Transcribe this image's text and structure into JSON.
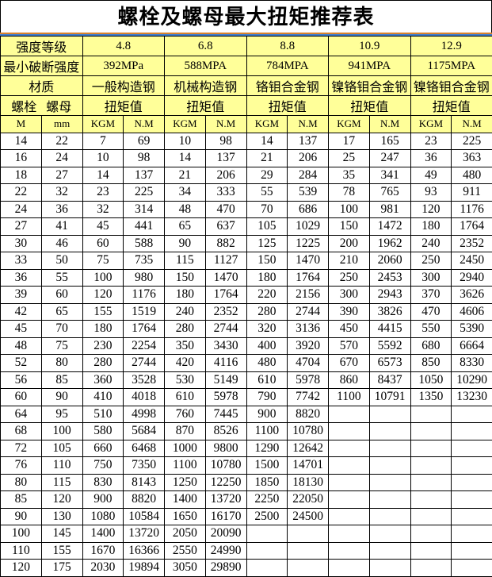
{
  "title": "螺栓及螺母最大扭矩推荐表",
  "header": {
    "grade_label": "强度等级",
    "grades": [
      "4.8",
      "6.8",
      "8.8",
      "10.9",
      "12.9"
    ],
    "strength_label": "最小破断强度",
    "strengths": [
      "392MPa",
      "588MPA",
      "784MPA",
      "941MPA",
      "1175MPA"
    ],
    "material_label": "材质",
    "materials": [
      "一般构造钢",
      "机械构造钢",
      "铬钼合金钢",
      "镍铬钼合金钢",
      "镍铬钼合金钢"
    ],
    "bolt_label": "螺栓",
    "nut_label": "螺母",
    "torque_label": "扭矩值",
    "unit_m": "M",
    "unit_mm": "mm",
    "unit_kgm": "KGM",
    "unit_nm": "N.M"
  },
  "rows": [
    [
      "14",
      "22",
      "7",
      "69",
      "10",
      "98",
      "14",
      "137",
      "17",
      "165",
      "23",
      "225"
    ],
    [
      "16",
      "24",
      "10",
      "98",
      "14",
      "137",
      "21",
      "206",
      "25",
      "247",
      "36",
      "363"
    ],
    [
      "18",
      "27",
      "14",
      "137",
      "21",
      "206",
      "29",
      "284",
      "35",
      "341",
      "49",
      "480"
    ],
    [
      "22",
      "32",
      "23",
      "225",
      "34",
      "333",
      "55",
      "539",
      "78",
      "765",
      "93",
      "911"
    ],
    [
      "24",
      "36",
      "32",
      "314",
      "48",
      "470",
      "70",
      "686",
      "100",
      "981",
      "120",
      "1176"
    ],
    [
      "27",
      "41",
      "45",
      "441",
      "65",
      "637",
      "105",
      "1029",
      "150",
      "1472",
      "180",
      "1764"
    ],
    [
      "30",
      "46",
      "60",
      "588",
      "90",
      "882",
      "125",
      "1225",
      "200",
      "1962",
      "240",
      "2352"
    ],
    [
      "33",
      "50",
      "75",
      "735",
      "115",
      "1127",
      "150",
      "1470",
      "210",
      "2060",
      "250",
      "2450"
    ],
    [
      "36",
      "55",
      "100",
      "980",
      "150",
      "1470",
      "180",
      "1764",
      "250",
      "2453",
      "300",
      "2940"
    ],
    [
      "39",
      "60",
      "120",
      "1176",
      "180",
      "1764",
      "220",
      "2156",
      "300",
      "2943",
      "370",
      "3626"
    ],
    [
      "42",
      "65",
      "155",
      "1519",
      "240",
      "2352",
      "280",
      "2744",
      "390",
      "3826",
      "470",
      "4606"
    ],
    [
      "45",
      "70",
      "180",
      "1764",
      "280",
      "2744",
      "320",
      "3136",
      "450",
      "4415",
      "550",
      "5390"
    ],
    [
      "48",
      "75",
      "230",
      "2254",
      "350",
      "3430",
      "400",
      "3920",
      "570",
      "5592",
      "680",
      "6664"
    ],
    [
      "52",
      "80",
      "280",
      "2744",
      "420",
      "4116",
      "480",
      "4704",
      "670",
      "6573",
      "850",
      "8330"
    ],
    [
      "56",
      "85",
      "360",
      "3528",
      "530",
      "5149",
      "610",
      "5978",
      "860",
      "8437",
      "1050",
      "10290"
    ],
    [
      "60",
      "90",
      "410",
      "4018",
      "610",
      "5978",
      "790",
      "7742",
      "1100",
      "10791",
      "1350",
      "13230"
    ],
    [
      "64",
      "95",
      "510",
      "4998",
      "760",
      "7445",
      "900",
      "8820",
      "",
      "",
      "",
      ""
    ],
    [
      "68",
      "100",
      "580",
      "5684",
      "870",
      "8526",
      "1100",
      "10780",
      "",
      "",
      "",
      ""
    ],
    [
      "72",
      "105",
      "660",
      "6468",
      "1000",
      "9800",
      "1290",
      "12642",
      "",
      "",
      "",
      ""
    ],
    [
      "76",
      "110",
      "750",
      "7350",
      "1100",
      "10780",
      "1500",
      "14701",
      "",
      "",
      "",
      ""
    ],
    [
      "80",
      "115",
      "830",
      "8143",
      "1250",
      "12250",
      "1850",
      "18130",
      "",
      "",
      "",
      ""
    ],
    [
      "85",
      "120",
      "900",
      "8820",
      "1400",
      "13720",
      "2250",
      "22050",
      "",
      "",
      "",
      ""
    ],
    [
      "90",
      "130",
      "1080",
      "10584",
      "1650",
      "16170",
      "2500",
      "24500",
      "",
      "",
      "",
      ""
    ],
    [
      "100",
      "145",
      "1400",
      "13720",
      "2050",
      "20090",
      "",
      "",
      "",
      "",
      "",
      ""
    ],
    [
      "110",
      "155",
      "1670",
      "16366",
      "2550",
      "24990",
      "",
      "",
      "",
      "",
      "",
      ""
    ],
    [
      "120",
      "175",
      "2030",
      "19894",
      "3050",
      "29890",
      "",
      "",
      "",
      "",
      "",
      ""
    ]
  ],
  "colors": {
    "header_bg": "#ffff99",
    "rule_orange": "#d9822b",
    "rule_blue": "#3f7fd0"
  }
}
